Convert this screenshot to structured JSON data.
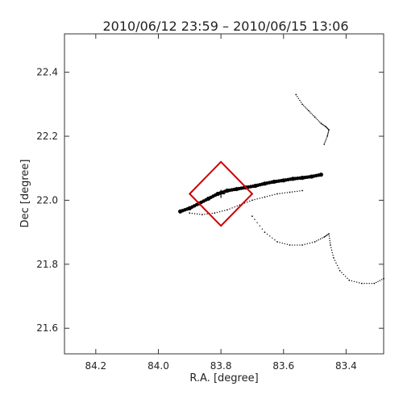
{
  "chart_data": {
    "type": "scatter",
    "title": "2010/06/12 23:59 – 2010/06/15 13:06",
    "xlabel": "R.A. [degree]",
    "ylabel": "Dec [degree]",
    "xlim": [
      84.3,
      83.28
    ],
    "ylim": [
      21.52,
      22.52
    ],
    "x_reversed": true,
    "x_ticks": [
      84.2,
      84.0,
      83.8,
      83.6,
      83.4
    ],
    "x_tick_labels": [
      "84.2",
      "84.0",
      "83.8",
      "83.6",
      "83.4"
    ],
    "y_ticks": [
      21.6,
      21.8,
      22.0,
      22.2,
      22.4
    ],
    "y_tick_labels": [
      "21.6",
      "21.8",
      "22.0",
      "22.2",
      "22.4"
    ],
    "grid": false,
    "series": [
      {
        "style": "thick-dots",
        "color": "#000000",
        "points": [
          [
            83.93,
            21.965
          ],
          [
            83.9,
            21.975
          ],
          [
            83.87,
            21.99
          ],
          [
            83.84,
            22.005
          ],
          [
            83.81,
            22.02
          ],
          [
            83.78,
            22.03
          ],
          [
            83.75,
            22.035
          ],
          [
            83.72,
            22.04
          ],
          [
            83.69,
            22.045
          ],
          [
            83.66,
            22.052
          ],
          [
            83.63,
            22.058
          ],
          [
            83.6,
            22.062
          ],
          [
            83.57,
            22.067
          ],
          [
            83.54,
            22.07
          ],
          [
            83.51,
            22.074
          ],
          [
            83.48,
            22.08
          ]
        ]
      },
      {
        "style": "fine-dots",
        "color": "#000000",
        "points": [
          [
            83.9,
            21.96
          ],
          [
            83.86,
            21.955
          ],
          [
            83.82,
            21.96
          ],
          [
            83.78,
            21.97
          ],
          [
            83.74,
            21.985
          ],
          [
            83.7,
            22.0
          ],
          [
            83.66,
            22.01
          ],
          [
            83.62,
            22.02
          ],
          [
            83.58,
            22.025
          ],
          [
            83.54,
            22.03
          ]
        ]
      },
      {
        "style": "fine-dots",
        "color": "#000000",
        "points": [
          [
            83.7,
            21.95
          ],
          [
            83.66,
            21.9
          ],
          [
            83.62,
            21.87
          ],
          [
            83.58,
            21.86
          ],
          [
            83.54,
            21.86
          ],
          [
            83.5,
            21.87
          ],
          [
            83.47,
            21.885
          ],
          [
            83.455,
            21.895
          ],
          [
            83.45,
            21.86
          ],
          [
            83.44,
            21.82
          ],
          [
            83.42,
            21.78
          ],
          [
            83.39,
            21.75
          ],
          [
            83.35,
            21.74
          ],
          [
            83.31,
            21.74
          ],
          [
            83.28,
            21.755
          ]
        ]
      },
      {
        "style": "fine-dots",
        "color": "#000000",
        "points": [
          [
            83.56,
            22.33
          ],
          [
            83.54,
            22.3
          ],
          [
            83.52,
            22.28
          ],
          [
            83.5,
            22.26
          ],
          [
            83.48,
            22.24
          ],
          [
            83.465,
            22.23
          ],
          [
            83.455,
            22.22
          ],
          [
            83.46,
            22.2
          ],
          [
            83.47,
            22.175
          ]
        ]
      }
    ],
    "marker": {
      "shape": "plus",
      "x": 83.8,
      "y": 22.02,
      "color": "#000000"
    },
    "region": {
      "shape": "diamond",
      "color": "#cc0000",
      "vertices": [
        [
          83.8,
          22.12
        ],
        [
          83.7,
          22.02
        ],
        [
          83.8,
          21.92
        ],
        [
          83.9,
          22.02
        ]
      ]
    }
  }
}
